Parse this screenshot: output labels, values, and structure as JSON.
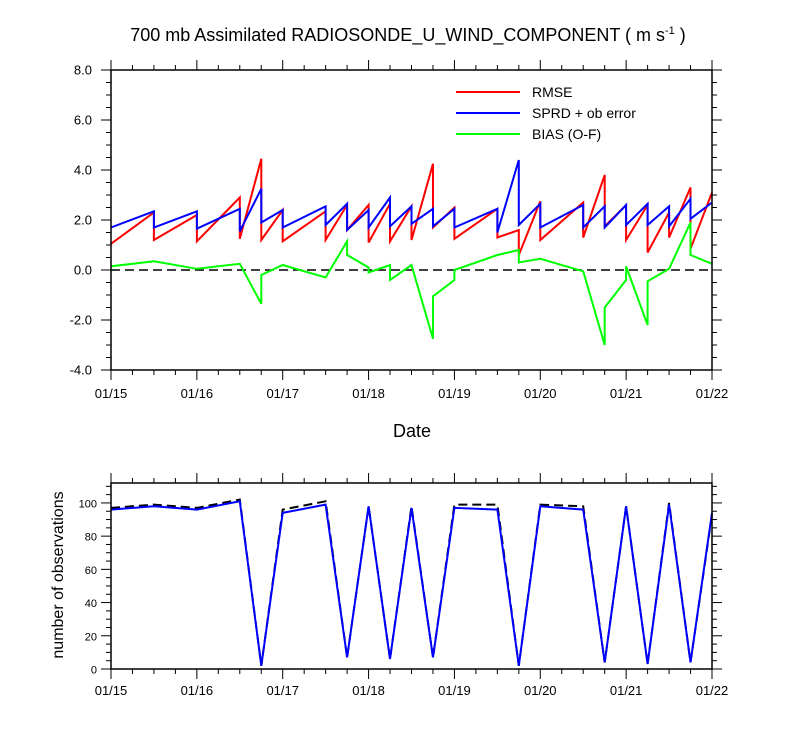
{
  "chart_data": [
    {
      "type": "line",
      "title": "700 mb Assimilated RADIOSONDE_U_WIND_COMPONENT ( m s",
      "title_sup": "-1",
      "title_end": " )",
      "xlabel": "Date",
      "ylabel": "",
      "x_ticks": [
        "01/15",
        "01/16",
        "01/17",
        "01/18",
        "01/19",
        "01/20",
        "01/21",
        "01/22"
      ],
      "x_range": [
        0,
        7
      ],
      "ylim": [
        -4,
        8
      ],
      "y_ticks": [
        "-4.0",
        "-2.0",
        "0.0",
        "2.0",
        "4.0",
        "6.0",
        "8.0"
      ],
      "zero_line": "dashed",
      "legend_position": "top-right",
      "series": [
        {
          "name": "RMSE",
          "color": "#ff0000",
          "x": [
            0,
            0.5,
            0.5,
            1,
            1,
            1.5,
            1.5,
            1.75,
            1.75,
            2,
            2,
            2.5,
            2.5,
            2.75,
            2.75,
            3,
            3,
            3.25,
            3.25,
            3.5,
            3.5,
            3.75,
            3.75,
            4,
            4,
            4.5,
            4.5,
            4.75,
            4.75,
            5,
            5,
            5.5,
            5.5,
            5.75,
            5.75,
            6,
            6,
            6.25,
            6.25,
            6.5,
            6.5,
            6.75,
            6.75,
            7
          ],
          "y": [
            1.05,
            2.3,
            1.2,
            2.2,
            1.15,
            2.9,
            1.25,
            4.45,
            1.2,
            2.4,
            1.15,
            2.35,
            1.2,
            2.6,
            1.6,
            2.6,
            1.1,
            2.65,
            1.15,
            2.55,
            1.2,
            4.25,
            1.7,
            2.5,
            1.25,
            2.45,
            1.3,
            1.6,
            0.6,
            2.75,
            1.2,
            2.7,
            1.3,
            3.8,
            1.75,
            2.6,
            1.2,
            2.6,
            0.7,
            2.3,
            1.3,
            3.3,
            0.85,
            3.1
          ]
        },
        {
          "name": "SPRD + ob error",
          "color": "#0000ff",
          "x": [
            0,
            0.5,
            0.5,
            1,
            1,
            1.5,
            1.5,
            1.75,
            1.75,
            2,
            2,
            2.5,
            2.5,
            2.75,
            2.75,
            3,
            3,
            3.25,
            3.25,
            3.5,
            3.5,
            3.75,
            3.75,
            4,
            4,
            4.5,
            4.5,
            4.75,
            4.75,
            5,
            5,
            5.5,
            5.5,
            5.75,
            5.75,
            6,
            6,
            6.25,
            6.25,
            6.5,
            6.5,
            6.75,
            6.75,
            7
          ],
          "y": [
            1.7,
            2.35,
            1.7,
            2.35,
            1.65,
            2.45,
            1.55,
            3.25,
            1.9,
            2.4,
            1.7,
            2.55,
            1.8,
            2.65,
            1.6,
            2.4,
            1.7,
            2.9,
            1.75,
            2.55,
            1.85,
            2.45,
            1.75,
            2.45,
            1.7,
            2.45,
            1.5,
            4.4,
            1.8,
            2.65,
            1.7,
            2.6,
            1.7,
            2.55,
            1.7,
            2.6,
            1.8,
            2.65,
            1.8,
            2.55,
            1.75,
            2.85,
            2.05,
            2.7
          ]
        },
        {
          "name": "BIAS (O-F)",
          "color": "#00ff00",
          "x": [
            0,
            0.5,
            1,
            1.5,
            1.75,
            1.75,
            2,
            2.5,
            2.75,
            2.75,
            3,
            3,
            3.25,
            3.25,
            3.5,
            3.75,
            3.75,
            4,
            4,
            4.5,
            4.75,
            4.75,
            5,
            5.5,
            5.75,
            5.75,
            6,
            6,
            6.25,
            6.25,
            6.5,
            6.75,
            6.75,
            7
          ],
          "y": [
            0.15,
            0.35,
            0.05,
            0.25,
            -1.35,
            -0.2,
            0.2,
            -0.3,
            1.15,
            0.6,
            0.1,
            -0.1,
            0.2,
            -0.4,
            0.2,
            -2.75,
            -1.05,
            -0.4,
            0.0,
            0.6,
            0.8,
            0.3,
            0.45,
            -0.05,
            -3.0,
            -1.5,
            -0.4,
            0.15,
            -2.2,
            -0.45,
            0.05,
            1.9,
            0.6,
            0.25
          ]
        }
      ]
    },
    {
      "type": "line",
      "title": "",
      "xlabel": "",
      "ylabel": "number of observations",
      "x_ticks": [
        "01/15",
        "01/16",
        "01/17",
        "01/18",
        "01/19",
        "01/20",
        "01/21",
        "01/22"
      ],
      "x_range": [
        0,
        7
      ],
      "ylim": [
        0,
        112
      ],
      "y_ticks": [
        "0",
        "20",
        "40",
        "60",
        "80",
        "100"
      ],
      "series": [
        {
          "color": "#000000",
          "style": "dashed",
          "x": [
            0,
            0.5,
            1,
            1.5,
            1.75,
            2,
            2.5,
            2.75,
            3,
            3.25,
            3.5,
            3.75,
            4,
            4.5,
            4.75,
            5,
            5.5,
            5.75,
            6,
            6.25,
            6.5,
            6.75,
            7
          ],
          "y": [
            97,
            99,
            97,
            102,
            2,
            96,
            101,
            7,
            98,
            6,
            98,
            7,
            99,
            99,
            2,
            99,
            98,
            4,
            98,
            3,
            100,
            4,
            93
          ]
        },
        {
          "color": "#0000ff",
          "style": "solid",
          "x": [
            0,
            0.5,
            1,
            1.5,
            1.75,
            2,
            2.5,
            2.75,
            3,
            3.25,
            3.5,
            3.75,
            4,
            4.5,
            4.75,
            5,
            5.5,
            5.75,
            6,
            6.25,
            6.5,
            6.75,
            7
          ],
          "y": [
            96,
            98,
            96,
            101,
            2,
            94,
            99,
            7,
            98,
            6,
            97,
            7,
            97,
            96,
            2,
            98,
            96,
            4,
            98,
            3,
            99,
            4,
            94
          ]
        }
      ]
    }
  ]
}
